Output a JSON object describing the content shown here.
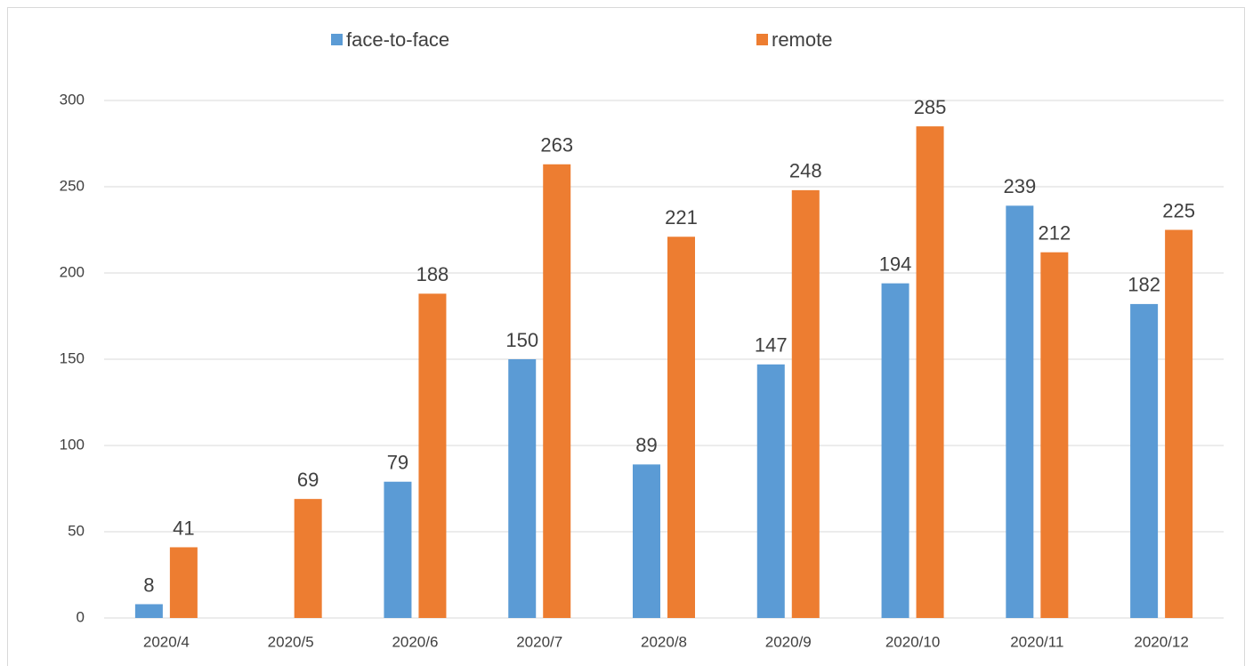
{
  "chart_data": {
    "type": "bar",
    "categories": [
      "2020/4",
      "2020/5",
      "2020/6",
      "2020/7",
      "2020/8",
      "2020/9",
      "2020/10",
      "2020/11",
      "2020/12"
    ],
    "series": [
      {
        "name": "face-to-face",
        "color": "#5b9bd5",
        "values": [
          8,
          null,
          79,
          150,
          89,
          147,
          194,
          239,
          182
        ]
      },
      {
        "name": "remote",
        "color": "#ed7d31",
        "values": [
          41,
          69,
          188,
          263,
          221,
          248,
          285,
          212,
          225
        ]
      }
    ],
    "ylim": [
      0,
      300
    ],
    "yticks": [
      0,
      50,
      100,
      150,
      200,
      250,
      300
    ],
    "grid": true,
    "legend": "top"
  }
}
